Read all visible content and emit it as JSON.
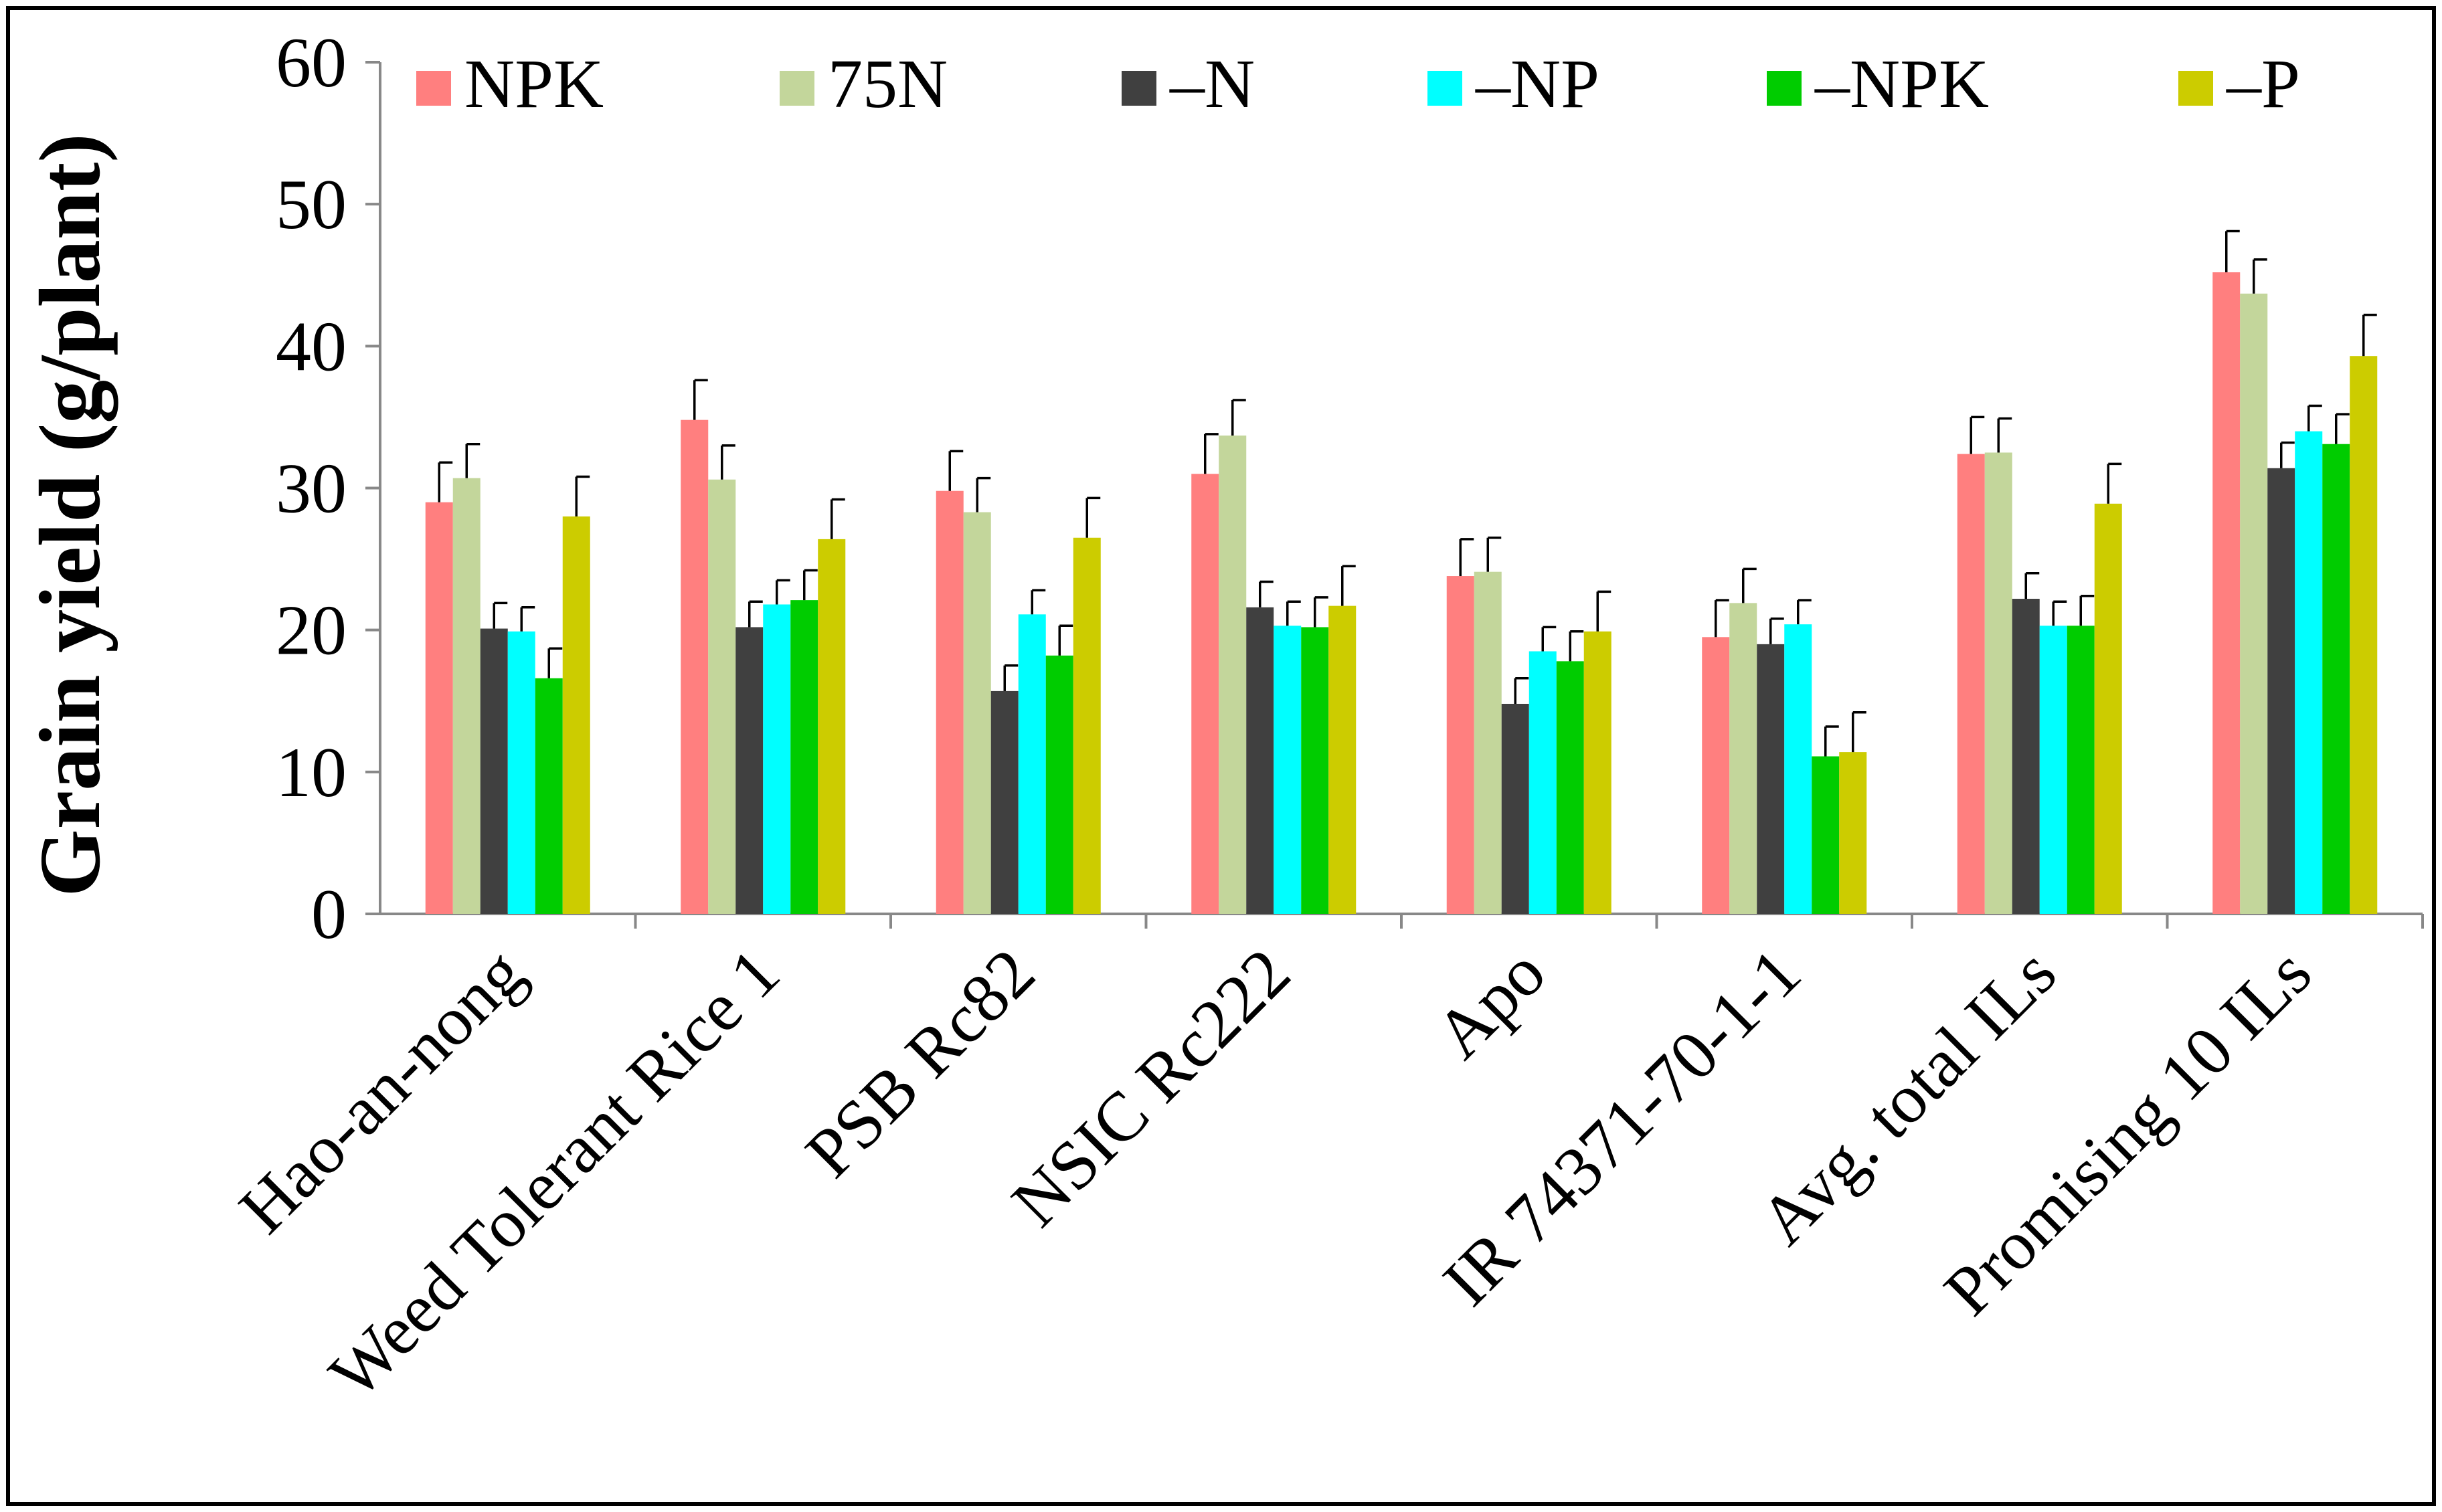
{
  "chart_data": {
    "type": "bar",
    "title": "",
    "xlabel": "",
    "ylabel": "Grain yield (g/plant)",
    "ylim": [
      0,
      60
    ],
    "yticks": [
      0,
      10,
      20,
      30,
      40,
      50,
      60
    ],
    "grid": false,
    "legend_position": "top",
    "error_bars": true,
    "categories": [
      "Hao-an-nong",
      "Weed Tolerant Rice 1",
      "PSB Rc82",
      "NSIC Rc222",
      "Apo",
      "IR 74371-70-1-1",
      "Avg. total ILs",
      "Promising 10 ILs"
    ],
    "series": [
      {
        "name": "NPK",
        "color": "#ff7f7f",
        "values": [
          29.0,
          34.8,
          29.8,
          31.0,
          23.8,
          19.5,
          32.4,
          45.2
        ],
        "errors": [
          2.8,
          2.8,
          2.8,
          2.8,
          2.6,
          2.6,
          2.6,
          2.9
        ]
      },
      {
        "name": "75N",
        "color": "#c3d69b",
        "values": [
          30.7,
          30.6,
          28.3,
          33.7,
          24.1,
          21.9,
          32.5,
          43.7
        ],
        "errors": [
          2.4,
          2.4,
          2.4,
          2.5,
          2.4,
          2.4,
          2.4,
          2.4
        ]
      },
      {
        "name": "–N",
        "color": "#404040",
        "values": [
          20.1,
          20.2,
          15.7,
          21.6,
          14.8,
          19.0,
          22.2,
          31.4
        ],
        "errors": [
          1.8,
          1.8,
          1.8,
          1.8,
          1.8,
          1.8,
          1.8,
          1.8
        ]
      },
      {
        "name": "–NP",
        "color": "#00ffff",
        "values": [
          19.9,
          21.8,
          21.1,
          20.3,
          18.5,
          20.4,
          20.3,
          34.0
        ],
        "errors": [
          1.7,
          1.7,
          1.7,
          1.7,
          1.7,
          1.7,
          1.7,
          1.8
        ]
      },
      {
        "name": "–NPK",
        "color": "#00cc00",
        "values": [
          16.6,
          22.1,
          18.2,
          20.2,
          17.8,
          11.1,
          20.3,
          33.1
        ],
        "errors": [
          2.1,
          2.1,
          2.1,
          2.1,
          2.1,
          2.1,
          2.1,
          2.1
        ]
      },
      {
        "name": "–P",
        "color": "#cccc00",
        "values": [
          28.0,
          26.4,
          26.5,
          21.7,
          19.9,
          11.4,
          28.9,
          39.3
        ],
        "errors": [
          2.8,
          2.8,
          2.8,
          2.8,
          2.8,
          2.8,
          2.8,
          2.9
        ]
      }
    ]
  }
}
